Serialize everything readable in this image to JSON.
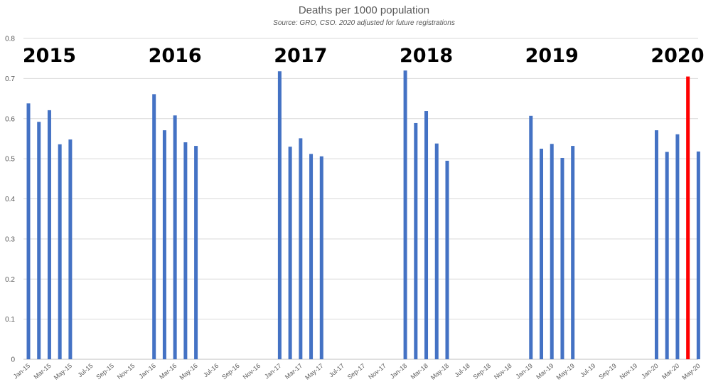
{
  "chart_data": {
    "type": "bar",
    "title": "Deaths per 1000 population",
    "subtitle": "Source: GRO, CSO. 2020 adjusted for future registrations",
    "xlabel": "",
    "ylabel": "",
    "ylim": [
      0,
      0.8
    ],
    "yticks": [
      "0",
      "0.1",
      "0.2",
      "0.3",
      "0.4",
      "0.5",
      "0.6",
      "0.7",
      "0.8"
    ],
    "grid": true,
    "legend": "none",
    "colors": {
      "bar": "#4472c4",
      "highlight": "#ff0000",
      "grid": "#d9d9d9",
      "axis": "#bfbfbf"
    },
    "categories": [
      "Jan-15",
      "Feb-15",
      "Mar-15",
      "Apr-15",
      "May-15",
      "Jun-15",
      "Jul-15",
      "Aug-15",
      "Sep-15",
      "Oct-15",
      "Nov-15",
      "Dec-15",
      "Jan-16",
      "Feb-16",
      "Mar-16",
      "Apr-16",
      "May-16",
      "Jun-16",
      "Jul-16",
      "Aug-16",
      "Sep-16",
      "Oct-16",
      "Nov-16",
      "Dec-16",
      "Jan-17",
      "Feb-17",
      "Mar-17",
      "Apr-17",
      "May-17",
      "Jun-17",
      "Jul-17",
      "Aug-17",
      "Sep-17",
      "Oct-17",
      "Nov-17",
      "Dec-17",
      "Jan-18",
      "Feb-18",
      "Mar-18",
      "Apr-18",
      "May-18",
      "Jun-18",
      "Jul-18",
      "Aug-18",
      "Sep-18",
      "Oct-18",
      "Nov-18",
      "Dec-18",
      "Jan-19",
      "Feb-19",
      "Mar-19",
      "Apr-19",
      "May-19",
      "Jun-19",
      "Jul-19",
      "Aug-19",
      "Sep-19",
      "Oct-19",
      "Nov-19",
      "Dec-19",
      "Jan-20",
      "Feb-20",
      "Mar-20",
      "Apr-20",
      "May-20"
    ],
    "tick_labels": [
      "Jan-15",
      "Mar-15",
      "May-15",
      "Jul-15",
      "Sep-15",
      "Nov-15",
      "Jan-16",
      "Mar-16",
      "May-16",
      "Jul-16",
      "Sep-16",
      "Nov-16",
      "Jan-17",
      "Mar-17",
      "May-17",
      "Jul-17",
      "Sep-17",
      "Nov-17",
      "Jan-18",
      "Mar-18",
      "May-18",
      "Jul-18",
      "Sep-18",
      "Nov-18",
      "Jan-19",
      "Mar-19",
      "May-19",
      "Jul-19",
      "Sep-19",
      "Nov-19",
      "Jan-20",
      "Mar-20",
      "May-20"
    ],
    "values": [
      0.638,
      0.592,
      0.621,
      0.536,
      0.548,
      null,
      null,
      null,
      null,
      null,
      null,
      null,
      0.661,
      0.571,
      0.608,
      0.541,
      0.532,
      null,
      null,
      null,
      null,
      null,
      null,
      null,
      0.718,
      0.53,
      0.551,
      0.512,
      0.506,
      null,
      null,
      null,
      null,
      null,
      null,
      null,
      0.72,
      0.589,
      0.619,
      0.538,
      0.495,
      null,
      null,
      null,
      null,
      null,
      null,
      null,
      0.607,
      0.525,
      0.537,
      0.502,
      0.532,
      null,
      null,
      null,
      null,
      null,
      null,
      null,
      0.571,
      0.517,
      0.561,
      0.705,
      0.518
    ],
    "highlight": [
      "Apr-20"
    ],
    "annotations": [
      {
        "text": "2015",
        "at": "Mar-15"
      },
      {
        "text": "2016",
        "at": "Mar-16"
      },
      {
        "text": "2017",
        "at": "Mar-17"
      },
      {
        "text": "2018",
        "at": "Mar-18"
      },
      {
        "text": "2019",
        "at": "Mar-19"
      },
      {
        "text": "2020",
        "at": "Mar-20"
      }
    ]
  }
}
